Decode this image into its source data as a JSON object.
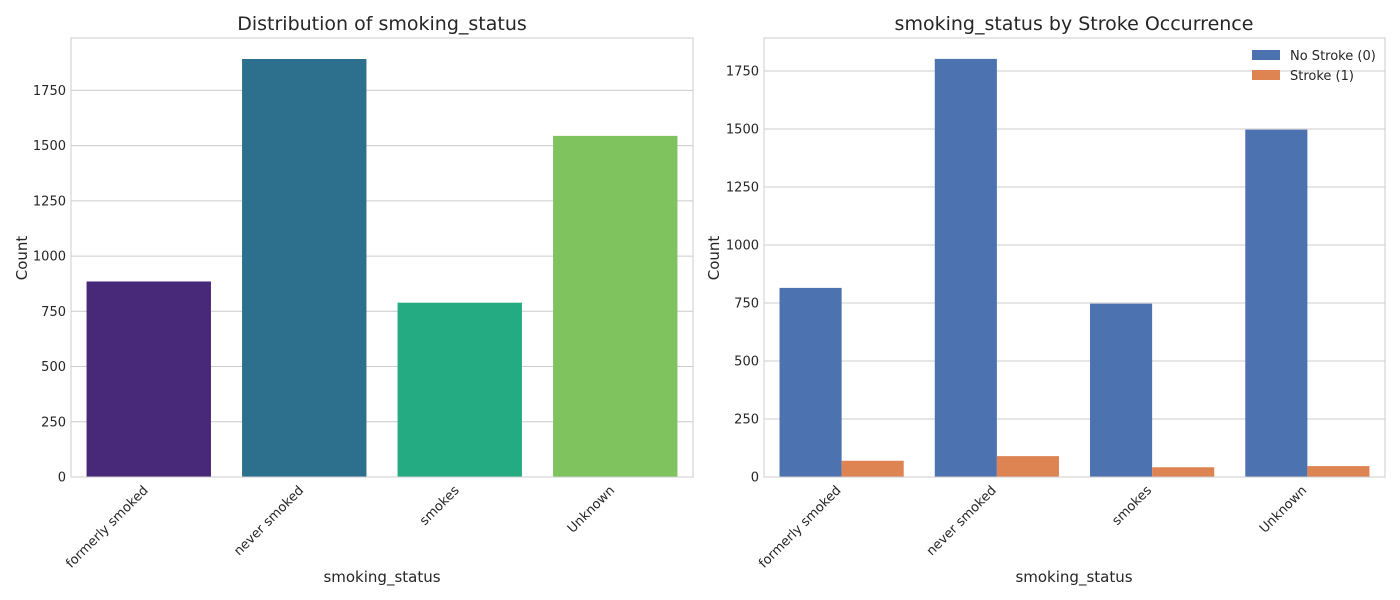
{
  "chart_data": [
    {
      "type": "bar",
      "title": "Distribution of smoking_status",
      "xlabel": "smoking_status",
      "ylabel": "Count",
      "categories": [
        "formerly smoked",
        "never smoked",
        "smokes",
        "Unknown"
      ],
      "values": [
        885,
        1892,
        789,
        1544
      ],
      "bar_colors": [
        "#482878",
        "#2d708e",
        "#25ab82",
        "#7fc35f"
      ],
      "ylim": [
        0,
        1987
      ],
      "yticks": [
        0,
        250,
        500,
        750,
        1000,
        1250,
        1500,
        1750
      ],
      "grid": true
    },
    {
      "type": "bar",
      "title": "smoking_status by Stroke Occurrence",
      "xlabel": "smoking_status",
      "ylabel": "Count",
      "categories": [
        "formerly smoked",
        "never smoked",
        "smokes",
        "Unknown"
      ],
      "series": [
        {
          "name": "No Stroke (0)",
          "color": "#4c72b0",
          "values": [
            815,
            1802,
            747,
            1497
          ]
        },
        {
          "name": "Stroke (1)",
          "color": "#dd8452",
          "values": [
            70,
            90,
            42,
            47
          ]
        }
      ],
      "ylim": [
        0,
        1892
      ],
      "yticks": [
        0,
        250,
        500,
        750,
        1000,
        1250,
        1500,
        1750
      ],
      "legend": "top-right",
      "grid": true
    }
  ]
}
